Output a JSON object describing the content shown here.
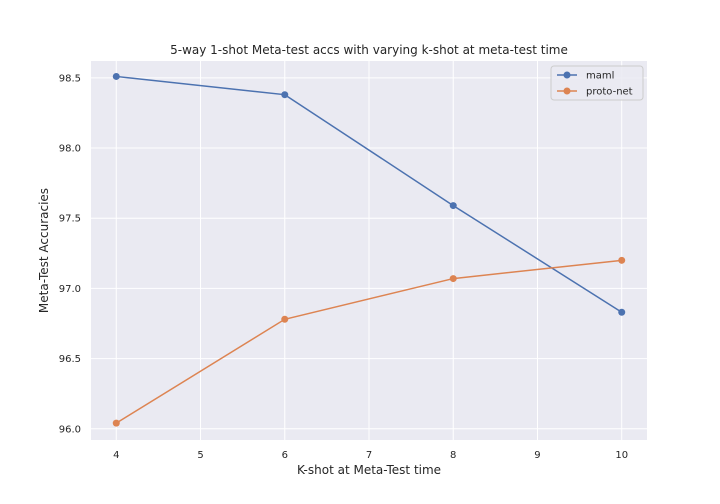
{
  "chart_data": {
    "type": "line",
    "title": "5-way 1-shot Meta-test accs with varying k-shot at meta-test time",
    "xlabel": "K-shot at Meta-Test time",
    "ylabel": "Meta-Test Accuracies",
    "x": [
      4,
      6,
      8,
      10
    ],
    "xlim": [
      3.7,
      10.3
    ],
    "ylim": [
      95.92,
      98.62
    ],
    "xticks": [
      4,
      5,
      6,
      7,
      8,
      9,
      10
    ],
    "yticks": [
      "96.0",
      "96.5",
      "97.0",
      "97.5",
      "98.0",
      "98.5"
    ],
    "grid": true,
    "legend_position": "top-right",
    "series": [
      {
        "name": "maml",
        "color": "#4c72b0",
        "values": [
          98.51,
          98.38,
          97.59,
          96.83
        ]
      },
      {
        "name": "proto-net",
        "color": "#dd8452",
        "values": [
          96.04,
          96.78,
          97.07,
          97.2
        ]
      }
    ]
  }
}
